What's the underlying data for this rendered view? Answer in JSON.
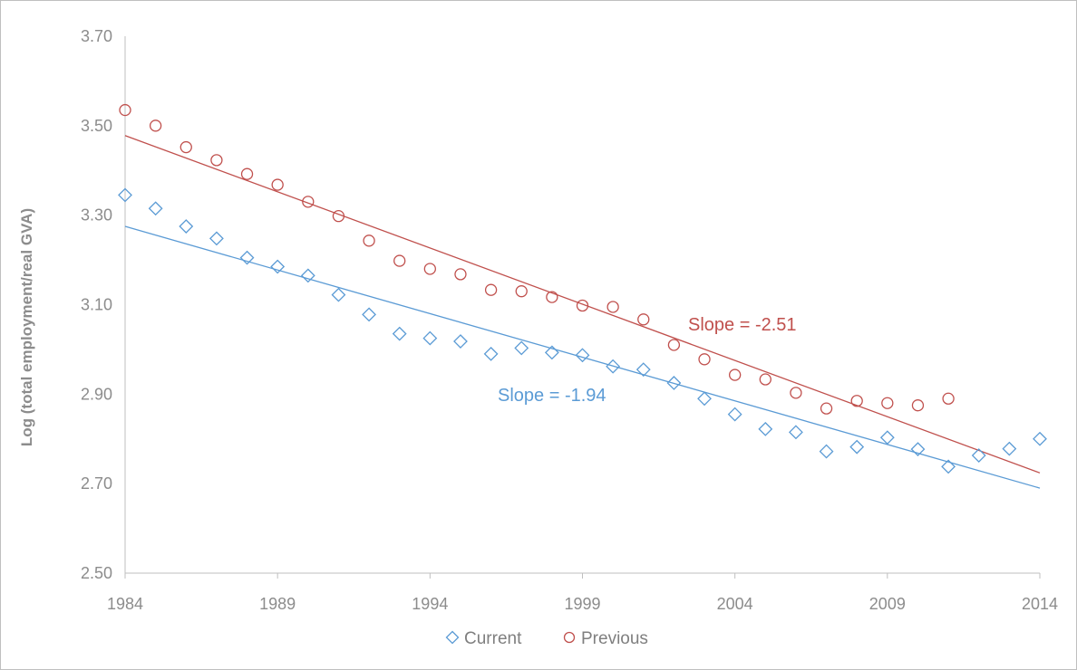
{
  "chart_data": {
    "type": "scatter",
    "title": "",
    "xlabel": "",
    "ylabel": "Log (total employment/real GVA)",
    "xlim": [
      1984,
      2014
    ],
    "ylim": [
      2.5,
      3.7
    ],
    "x_ticks": [
      "1984",
      "1989",
      "1994",
      "1999",
      "2004",
      "2009",
      "2014"
    ],
    "y_ticks": [
      "2.50",
      "2.70",
      "2.90",
      "3.10",
      "3.30",
      "3.50",
      "3.70"
    ],
    "grid": false,
    "legend": {
      "position": "bottom",
      "entries": [
        "Current",
        "Previous"
      ]
    },
    "series": [
      {
        "name": "Current",
        "marker": "diamond",
        "color": "#5b9bd5",
        "x": [
          1984,
          1985,
          1986,
          1987,
          1988,
          1989,
          1990,
          1991,
          1992,
          1993,
          1994,
          1995,
          1996,
          1997,
          1998,
          1999,
          2000,
          2001,
          2002,
          2003,
          2004,
          2005,
          2006,
          2007,
          2008,
          2009,
          2010,
          2011,
          2012,
          2013,
          2014
        ],
        "y": [
          3.345,
          3.315,
          3.275,
          3.248,
          3.205,
          3.185,
          3.165,
          3.122,
          3.078,
          3.035,
          3.025,
          3.018,
          2.99,
          3.003,
          2.993,
          2.987,
          2.962,
          2.955,
          2.925,
          2.89,
          2.855,
          2.822,
          2.815,
          2.772,
          2.782,
          2.803,
          2.777,
          2.738,
          2.763,
          2.778,
          2.8
        ],
        "trendline": {
          "x": [
            1984,
            2014
          ],
          "y": [
            3.275,
            2.69
          ]
        },
        "annotation": "Slope = -1.94"
      },
      {
        "name": "Previous",
        "marker": "circle",
        "color": "#c0504d",
        "x": [
          1984,
          1985,
          1986,
          1987,
          1988,
          1989,
          1990,
          1991,
          1992,
          1993,
          1994,
          1995,
          1996,
          1997,
          1998,
          1999,
          2000,
          2001,
          2002,
          2003,
          2004,
          2005,
          2006,
          2007,
          2008,
          2009,
          2010,
          2011
        ],
        "y": [
          3.535,
          3.5,
          3.452,
          3.423,
          3.392,
          3.368,
          3.33,
          3.298,
          3.243,
          3.198,
          3.18,
          3.168,
          3.133,
          3.13,
          3.117,
          3.098,
          3.095,
          3.067,
          3.01,
          2.978,
          2.943,
          2.933,
          2.903,
          2.868,
          2.885,
          2.88,
          2.875,
          2.89
        ],
        "trendline": {
          "x": [
            1984,
            2014
          ],
          "y": [
            3.478,
            2.724
          ]
        },
        "annotation": "Slope = -2.51"
      }
    ]
  }
}
